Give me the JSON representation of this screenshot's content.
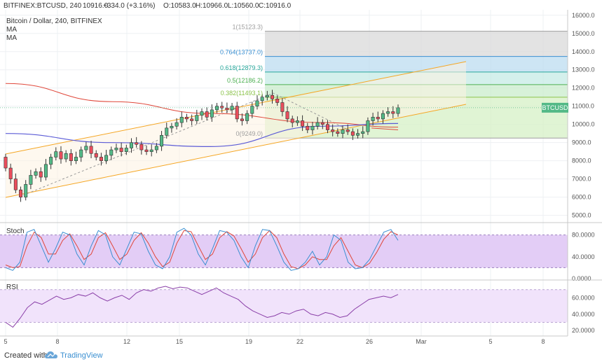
{
  "header": {
    "symbol": "BITFINEX:BTCUSD, 240",
    "price": "10916.0",
    "change": "+334.0 (+3.16%)",
    "open": "O:10583.0",
    "high": "H:10966.0",
    "low": "L:10560.0",
    "close": "C:10916.0",
    "legend_title": "Bitcoin / Dollar, 240, BITFINEX",
    "legend_ma1": "MA",
    "legend_ma2": "MA"
  },
  "footer": {
    "created_with": "Created with",
    "brand": "TradingView"
  },
  "colors": {
    "up": "#53b987",
    "down": "#eb4d5c",
    "ma_red": "#e0473a",
    "ma_blue": "#5b5bd6",
    "channel": "#f5a623",
    "stoch_k": "#3a8fd1",
    "stoch_d": "#e0473a",
    "rsi": "#8a3fa8"
  },
  "chart_data": {
    "type": "candlestick",
    "ylim": [
      4600,
      16300
    ],
    "y_ticks": [
      "16000.0",
      "15000.0",
      "14000.0",
      "13000.0",
      "12000.0",
      "11000.0",
      "10000.0",
      "9000.0",
      "8000.0",
      "7000.0",
      "6000.0",
      "5000.0"
    ],
    "x_ticks": [
      "5",
      "8",
      "12",
      "15",
      "19",
      "22",
      "26",
      "Mar",
      "5",
      "8"
    ],
    "price_label": "BTCUSD",
    "fibonacci": [
      {
        "label": "1(15123.3)",
        "value": 15123.3
      },
      {
        "label": "0.764(13737.0)",
        "value": 13737.0
      },
      {
        "label": "0.618(12879.3)",
        "value": 12879.3
      },
      {
        "label": "0.5(12186.2)",
        "value": 12186.2
      },
      {
        "label": "0.382(11493.1)",
        "value": 11493.1
      },
      {
        "label": "0(9249.0)",
        "value": 9249.0
      }
    ],
    "closes": [
      7600,
      7000,
      6400,
      6000,
      6700,
      7200,
      7400,
      7100,
      7800,
      8200,
      8500,
      8100,
      8400,
      8000,
      8200,
      8600,
      8800,
      8400,
      8200,
      8000,
      8300,
      8600,
      8700,
      8500,
      8700,
      9000,
      8900,
      8600,
      8500,
      8600,
      8800,
      9400,
      9800,
      9900,
      10100,
      10400,
      10300,
      10200,
      10500,
      10700,
      10400,
      10800,
      11000,
      10900,
      10800,
      11000,
      10300,
      10200,
      10600,
      11000,
      11300,
      11500,
      11600,
      11400,
      11200,
      10700,
      10300,
      10100,
      10200,
      9900,
      9700,
      9900,
      10100,
      10000,
      9700,
      9600,
      9500,
      9700,
      9600,
      9400,
      9500,
      9600,
      10200,
      10400,
      10300,
      10600,
      10700,
      10600,
      10916
    ],
    "ma_red": [
      12250,
      11250,
      10600,
      10100,
      9850
    ],
    "ma_blue": [
      9500,
      9000,
      8780,
      9900,
      10050
    ],
    "stoch_ticks": [
      "80.0000",
      "40.0000",
      "0.0000"
    ],
    "rsi_ticks": [
      "60.0000",
      "40.0000",
      "20.0000"
    ],
    "stoch_ylim": [
      0,
      100
    ],
    "stoch_bands": [
      80,
      20
    ],
    "stoch_k": [
      20,
      15,
      30,
      85,
      90,
      60,
      30,
      55,
      85,
      80,
      45,
      25,
      60,
      88,
      80,
      40,
      25,
      55,
      85,
      82,
      50,
      25,
      18,
      40,
      85,
      92,
      80,
      45,
      25,
      55,
      88,
      85,
      70,
      40,
      20,
      60,
      90,
      88,
      60,
      30,
      15,
      18,
      30,
      50,
      25,
      40,
      80,
      70,
      30,
      18,
      20,
      35,
      60,
      85,
      90,
      70
    ],
    "stoch_d": [
      25,
      20,
      22,
      60,
      85,
      75,
      45,
      45,
      70,
      82,
      60,
      35,
      45,
      75,
      84,
      60,
      35,
      45,
      70,
      84,
      65,
      40,
      22,
      30,
      65,
      88,
      86,
      60,
      35,
      45,
      75,
      86,
      78,
      55,
      30,
      45,
      75,
      88,
      75,
      45,
      22,
      18,
      25,
      40,
      35,
      35,
      60,
      75,
      50,
      25,
      20,
      28,
      48,
      72,
      86,
      80
    ],
    "rsi_ylim": [
      15,
      80
    ],
    "rsi_bands": [
      70,
      30
    ],
    "rsi": [
      30,
      24,
      35,
      48,
      55,
      52,
      57,
      62,
      58,
      60,
      64,
      62,
      66,
      60,
      56,
      60,
      63,
      58,
      66,
      70,
      68,
      72,
      74,
      71,
      73,
      72,
      68,
      64,
      68,
      72,
      66,
      62,
      58,
      50,
      44,
      40,
      36,
      38,
      42,
      40,
      44,
      46,
      40,
      38,
      42,
      40,
      36,
      38,
      46,
      52,
      58,
      60,
      62,
      60,
      64
    ]
  }
}
